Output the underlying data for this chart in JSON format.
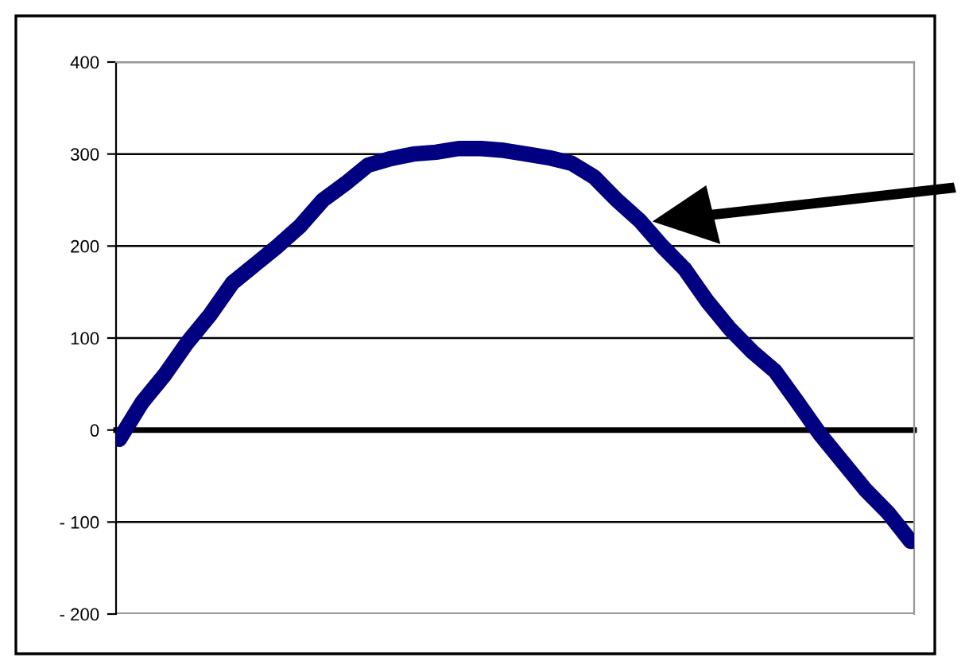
{
  "chart_data": {
    "type": "line",
    "categories": [
      null,
      null,
      null,
      null,
      null,
      null,
      null,
      null,
      null,
      null,
      null,
      null,
      null,
      null,
      null,
      null,
      null,
      null,
      null,
      null,
      null,
      null,
      null,
      null,
      null,
      null,
      null,
      null,
      null,
      null,
      null,
      null,
      null,
      null,
      null,
      null
    ],
    "series": [
      {
        "color": "#000080",
        "values": [
          -10,
          30,
          60,
          95,
          125,
          160,
          180,
          200,
          222,
          250,
          268,
          288,
          295,
          300,
          302,
          306,
          306,
          304,
          300,
          296,
          290,
          275,
          250,
          228,
          200,
          175,
          140,
          110,
          85,
          64,
          30,
          -5,
          -35,
          -65,
          -90,
          -121
        ]
      }
    ],
    "ylim": [
      -200,
      400
    ],
    "yticks": [
      {
        "value": -200,
        "label": "- 200"
      },
      {
        "value": -100,
        "label": "- 100"
      },
      0,
      100,
      200,
      300,
      400
    ],
    "grid": "y",
    "legend": false,
    "marker": "none",
    "line_style": "solid"
  }
}
